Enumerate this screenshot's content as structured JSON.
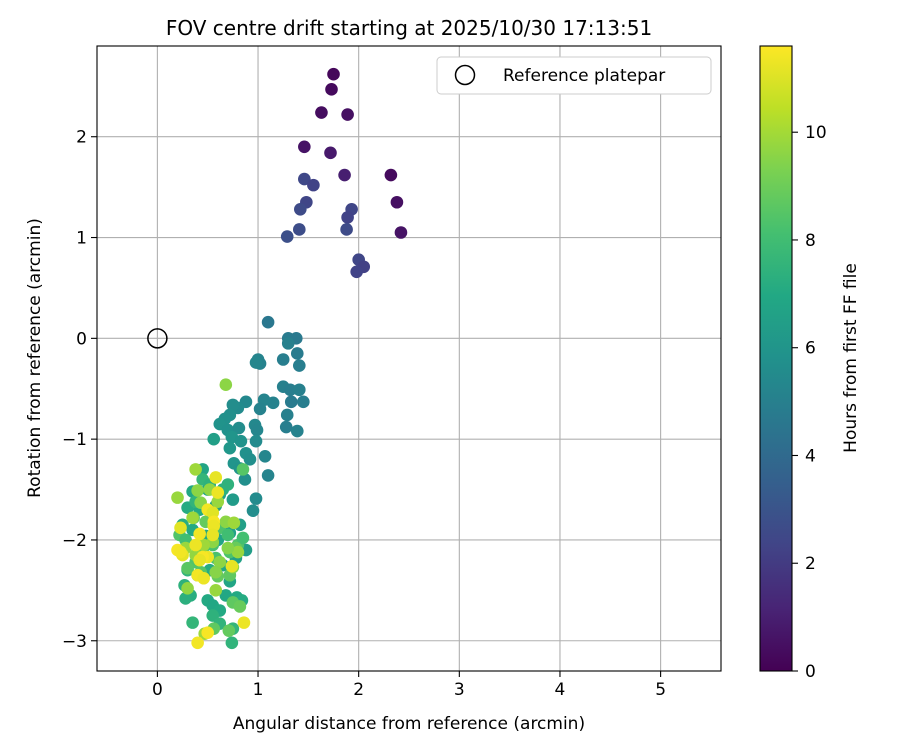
{
  "chart_data": {
    "type": "scatter",
    "title": "FOV centre drift starting at 2025/10/30 17:13:51",
    "xlabel": "Angular distance from reference (arcmin)",
    "ylabel": "Rotation from reference (arcmin)",
    "xlim": [
      -0.6,
      5.6
    ],
    "ylim": [
      -3.3,
      2.9
    ],
    "xticks": [
      0,
      1,
      2,
      3,
      4,
      5
    ],
    "yticks": [
      -3,
      -2,
      -1,
      0,
      1,
      2
    ],
    "grid": true,
    "legend": {
      "position": "top-right",
      "entries": [
        "Reference platepar"
      ]
    },
    "reference": {
      "x": 0,
      "y": 0
    },
    "colorbar": {
      "label": "Hours from first FF file",
      "min": 0,
      "max": 11.6,
      "ticks": [
        0,
        2,
        4,
        6,
        8,
        10
      ],
      "colormap": "viridis"
    },
    "points": [
      [
        1.75,
        2.62,
        0.2
      ],
      [
        1.73,
        2.47,
        0.3
      ],
      [
        1.63,
        2.24,
        0.4
      ],
      [
        1.89,
        2.22,
        0.5
      ],
      [
        1.46,
        1.9,
        0.6
      ],
      [
        1.72,
        1.84,
        0.8
      ],
      [
        1.86,
        1.62,
        1.0
      ],
      [
        2.32,
        1.62,
        0.3
      ],
      [
        2.38,
        1.35,
        0.5
      ],
      [
        2.42,
        1.05,
        0.6
      ],
      [
        1.46,
        1.58,
        2.5
      ],
      [
        1.55,
        1.52,
        2.3
      ],
      [
        1.48,
        1.35,
        2.4
      ],
      [
        1.42,
        1.28,
        2.6
      ],
      [
        1.93,
        1.28,
        2.4
      ],
      [
        1.89,
        1.2,
        2.3
      ],
      [
        1.88,
        1.08,
        2.6
      ],
      [
        1.41,
        1.08,
        2.7
      ],
      [
        1.29,
        1.01,
        2.8
      ],
      [
        2.0,
        0.78,
        2.4
      ],
      [
        2.05,
        0.71,
        2.2
      ],
      [
        1.98,
        0.66,
        2.3
      ],
      [
        1.1,
        0.16,
        4.6
      ],
      [
        1.3,
        0.0,
        4.8
      ],
      [
        1.38,
        0.0,
        4.7
      ],
      [
        1.3,
        -0.05,
        5.0
      ],
      [
        1.25,
        -0.21,
        4.9
      ],
      [
        1.39,
        -0.15,
        4.8
      ],
      [
        1.41,
        -0.27,
        4.9
      ],
      [
        1.0,
        -0.21,
        5.2
      ],
      [
        1.02,
        -0.25,
        5.1
      ],
      [
        0.98,
        -0.24,
        5.3
      ],
      [
        1.25,
        -0.48,
        5.0
      ],
      [
        1.32,
        -0.51,
        4.9
      ],
      [
        1.41,
        -0.51,
        5.0
      ],
      [
        1.45,
        -0.63,
        4.9
      ],
      [
        1.33,
        -0.63,
        4.8
      ],
      [
        1.15,
        -0.64,
        5.1
      ],
      [
        1.06,
        -0.61,
        5.2
      ],
      [
        1.02,
        -0.7,
        5.1
      ],
      [
        1.29,
        -0.76,
        5.0
      ],
      [
        1.28,
        -0.88,
        4.9
      ],
      [
        1.39,
        -0.92,
        5.1
      ],
      [
        0.88,
        -0.63,
        5.4
      ],
      [
        0.8,
        -0.69,
        5.5
      ],
      [
        0.75,
        -0.66,
        5.6
      ],
      [
        0.72,
        -0.76,
        5.7
      ],
      [
        0.67,
        -0.8,
        5.8
      ],
      [
        0.62,
        -0.85,
        5.9
      ],
      [
        0.7,
        -0.91,
        5.8
      ],
      [
        0.81,
        -0.89,
        5.6
      ],
      [
        0.97,
        -0.86,
        5.4
      ],
      [
        0.99,
        -0.91,
        5.3
      ],
      [
        0.98,
        -1.02,
        5.5
      ],
      [
        0.74,
        -0.98,
        6.0
      ],
      [
        0.83,
        -1.02,
        5.9
      ],
      [
        0.72,
        -1.09,
        6.1
      ],
      [
        0.88,
        -1.14,
        5.8
      ],
      [
        1.07,
        -1.17,
        5.3
      ],
      [
        0.92,
        -1.2,
        5.7
      ],
      [
        0.76,
        -1.24,
        6.0
      ],
      [
        0.82,
        -1.29,
        5.9
      ],
      [
        1.1,
        -1.36,
        5.2
      ],
      [
        0.87,
        -1.4,
        5.7
      ],
      [
        0.98,
        -1.59,
        5.5
      ],
      [
        0.95,
        -1.71,
        5.6
      ],
      [
        0.56,
        -1.0,
        6.5
      ],
      [
        0.85,
        -1.3,
        8.5
      ],
      [
        0.68,
        -0.46,
        9.6
      ],
      [
        0.45,
        -1.3,
        6.8
      ],
      [
        0.35,
        -1.52,
        6.9
      ],
      [
        0.5,
        -1.5,
        6.8
      ],
      [
        0.62,
        -1.55,
        6.6
      ],
      [
        0.75,
        -1.6,
        6.3
      ],
      [
        0.58,
        -1.66,
        6.6
      ],
      [
        0.42,
        -1.7,
        7.0
      ],
      [
        0.3,
        -1.68,
        7.1
      ],
      [
        0.25,
        -1.85,
        7.2
      ],
      [
        0.35,
        -1.9,
        7.0
      ],
      [
        0.48,
        -1.96,
        6.9
      ],
      [
        0.6,
        -2.0,
        6.7
      ],
      [
        0.72,
        -1.93,
        6.6
      ],
      [
        0.82,
        -1.85,
        6.5
      ],
      [
        0.88,
        -2.1,
        6.4
      ],
      [
        0.78,
        -2.18,
        6.6
      ],
      [
        0.65,
        -2.25,
        6.9
      ],
      [
        0.52,
        -2.3,
        7.1
      ],
      [
        0.4,
        -2.35,
        7.3
      ],
      [
        0.3,
        -2.3,
        7.5
      ],
      [
        0.27,
        -2.45,
        7.4
      ],
      [
        0.33,
        -2.55,
        7.2
      ],
      [
        0.28,
        -2.58,
        7.3
      ],
      [
        0.5,
        -2.6,
        7.0
      ],
      [
        0.55,
        -2.65,
        6.9
      ],
      [
        0.62,
        -2.7,
        7.0
      ],
      [
        0.72,
        -2.41,
        6.8
      ],
      [
        0.68,
        -2.55,
        6.9
      ],
      [
        0.79,
        -2.57,
        7.0
      ],
      [
        0.84,
        -2.6,
        7.1
      ],
      [
        0.35,
        -2.82,
        7.6
      ],
      [
        0.55,
        -2.75,
        7.4
      ],
      [
        0.62,
        -2.83,
        7.5
      ],
      [
        0.75,
        -2.88,
        7.6
      ],
      [
        0.74,
        -3.02,
        7.5
      ],
      [
        0.45,
        -1.4,
        7.6
      ],
      [
        0.52,
        -1.45,
        7.4
      ],
      [
        0.65,
        -1.5,
        7.3
      ],
      [
        0.7,
        -1.45,
        7.4
      ],
      [
        0.38,
        -1.62,
        7.5
      ],
      [
        0.22,
        -1.95,
        8.4
      ],
      [
        0.28,
        -2.0,
        8.0
      ],
      [
        0.45,
        -2.1,
        8.1
      ],
      [
        0.55,
        -2.05,
        8.2
      ],
      [
        0.62,
        -1.88,
        8.3
      ],
      [
        0.7,
        -1.95,
        8.0
      ],
      [
        0.8,
        -2.05,
        8.4
      ],
      [
        0.85,
        -1.98,
        8.1
      ],
      [
        0.72,
        -2.12,
        8.3
      ],
      [
        0.58,
        -2.18,
        8.2
      ],
      [
        0.38,
        -2.22,
        8.4
      ],
      [
        0.3,
        -2.28,
        8.6
      ],
      [
        0.43,
        -2.32,
        8.5
      ],
      [
        0.6,
        -2.36,
        8.8
      ],
      [
        0.72,
        -2.35,
        8.7
      ],
      [
        0.78,
        -2.08,
        8.9
      ],
      [
        0.48,
        -1.82,
        8.8
      ],
      [
        0.36,
        -1.78,
        8.6
      ],
      [
        0.75,
        -2.62,
        8.7
      ],
      [
        0.82,
        -2.66,
        8.9
      ],
      [
        0.71,
        -2.9,
        8.8
      ],
      [
        0.56,
        -2.88,
        8.7
      ],
      [
        0.2,
        -1.58,
        9.8
      ],
      [
        0.4,
        -1.51,
        9.6
      ],
      [
        0.38,
        -1.3,
        9.9
      ],
      [
        0.52,
        -1.5,
        9.7
      ],
      [
        0.6,
        -1.62,
        9.8
      ],
      [
        0.43,
        -1.63,
        9.5
      ],
      [
        0.35,
        -1.78,
        9.9
      ],
      [
        0.68,
        -1.82,
        9.6
      ],
      [
        0.76,
        -1.83,
        9.9
      ],
      [
        0.8,
        -2.12,
        9.8
      ],
      [
        0.7,
        -2.08,
        9.5
      ],
      [
        0.55,
        -2.02,
        9.6
      ],
      [
        0.46,
        -2.05,
        9.9
      ],
      [
        0.38,
        -2.15,
        9.7
      ],
      [
        0.28,
        -2.08,
        9.8
      ],
      [
        0.62,
        -2.22,
        9.6
      ],
      [
        0.58,
        -2.32,
        9.5
      ],
      [
        0.3,
        -2.48,
        9.7
      ],
      [
        0.58,
        -2.5,
        9.8
      ],
      [
        0.47,
        -2.93,
        9.9
      ],
      [
        0.75,
        -2.27,
        9.6
      ],
      [
        0.58,
        -1.38,
        11.2
      ],
      [
        0.6,
        -1.53,
        11.3
      ],
      [
        0.5,
        -1.7,
        11.4
      ],
      [
        0.55,
        -1.73,
        11.1
      ],
      [
        0.56,
        -1.82,
        11.5
      ],
      [
        0.56,
        -1.86,
        11.3
      ],
      [
        0.55,
        -1.95,
        11.2
      ],
      [
        0.42,
        -1.94,
        11.4
      ],
      [
        0.38,
        -2.05,
        11.3
      ],
      [
        0.2,
        -2.1,
        11.5
      ],
      [
        0.25,
        -2.15,
        11.2
      ],
      [
        0.23,
        -2.12,
        11.4
      ],
      [
        0.5,
        -2.17,
        11.3
      ],
      [
        0.45,
        -2.17,
        11.5
      ],
      [
        0.42,
        -2.2,
        11.2
      ],
      [
        0.4,
        -2.35,
        11.4
      ],
      [
        0.46,
        -2.38,
        11.3
      ],
      [
        0.5,
        -2.92,
        11.5
      ],
      [
        0.4,
        -3.02,
        11.4
      ],
      [
        0.86,
        -2.82,
        11.3
      ],
      [
        0.74,
        -2.26,
        11.2
      ],
      [
        0.23,
        -1.88,
        11.1
      ]
    ]
  }
}
